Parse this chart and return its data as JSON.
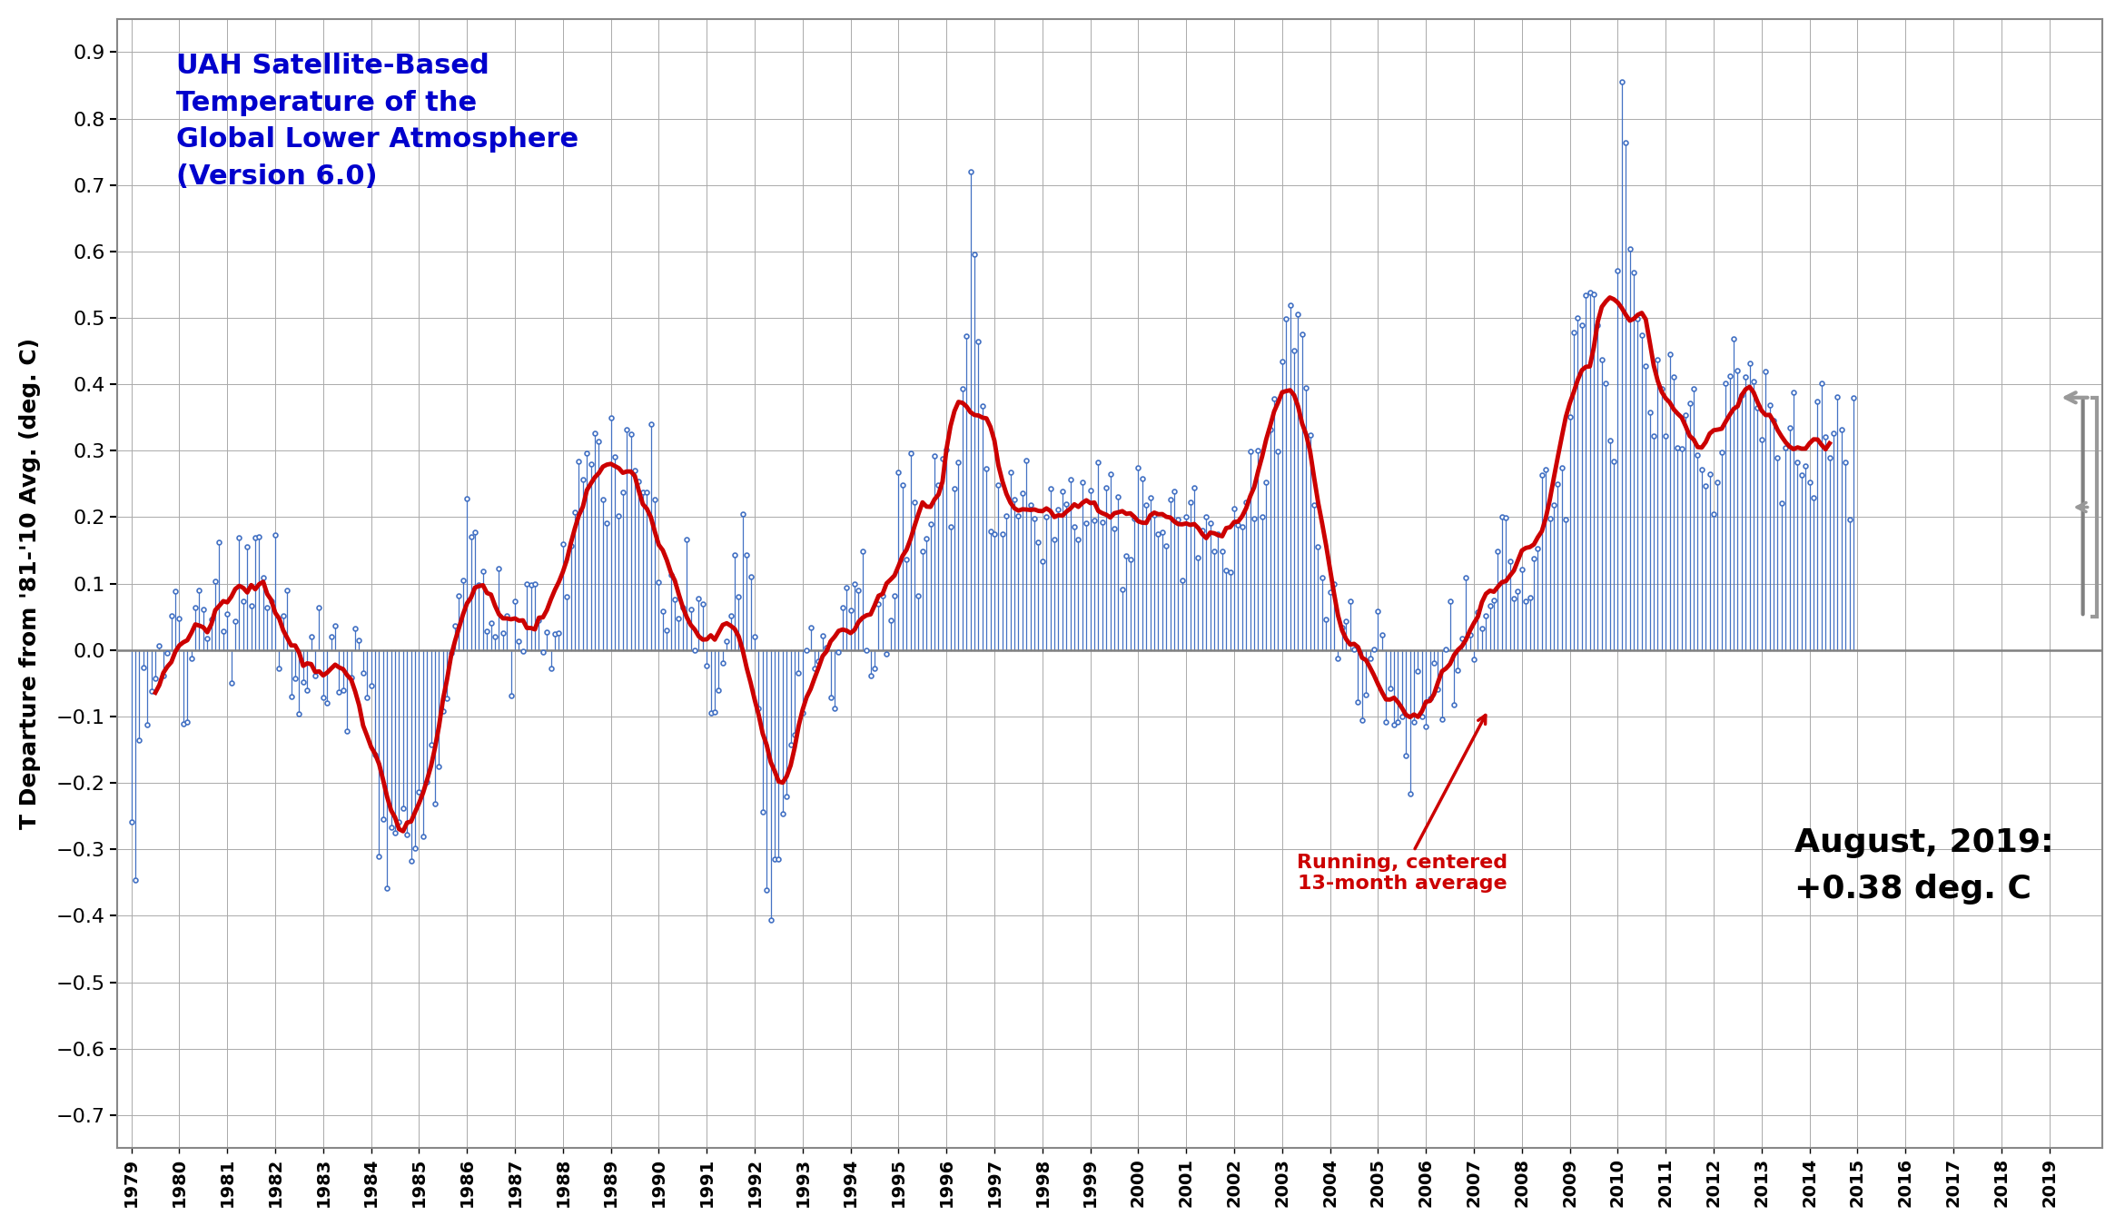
{
  "title_line1": "UAH Satellite-Based",
  "title_line2": "Temperature of the",
  "title_line3": "Global Lower Atmosphere",
  "title_line4": "(Version 6.0)",
  "title_color": "#0000CC",
  "ylabel": "T Departure from '81-'10 Avg. (deg. C)",
  "annotation_text": "August, 2019:\n+0.38 deg. C",
  "running_avg_label": "Running, centered\n13-month average",
  "running_avg_label_color": "#CC0000",
  "ylim": [
    -0.75,
    0.95
  ],
  "yticks": [
    -0.7,
    -0.6,
    -0.5,
    -0.4,
    -0.3,
    -0.2,
    -0.1,
    0.0,
    0.1,
    0.2,
    0.3,
    0.4,
    0.5,
    0.6,
    0.7,
    0.8,
    0.9
  ],
  "background_color": "#ffffff",
  "grid_color": "#aaaaaa",
  "line_color": "#4472c4",
  "marker_color": "#4472c4",
  "running_avg_color": "#CC0000",
  "zero_line_color": "#808080",
  "monthly_data": [
    -0.259,
    -0.346,
    -0.135,
    -0.026,
    -0.113,
    -0.062,
    -0.043,
    0.006,
    -0.038,
    -0.005,
    0.052,
    0.088,
    0.047,
    -0.111,
    -0.108,
    -0.013,
    0.064,
    0.09,
    0.061,
    0.018,
    0.046,
    0.104,
    0.163,
    0.029,
    0.054,
    -0.049,
    0.044,
    0.169,
    0.073,
    0.155,
    0.066,
    0.169,
    0.17,
    0.109,
    0.064,
    0.074,
    0.173,
    -0.028,
    0.051,
    0.09,
    -0.07,
    -0.043,
    -0.096,
    -0.048,
    -0.06,
    0.02,
    -0.038,
    0.064,
    -0.071,
    -0.08,
    0.02,
    0.037,
    -0.063,
    -0.06,
    -0.122,
    -0.041,
    0.032,
    0.015,
    -0.034,
    -0.072,
    -0.053,
    -0.157,
    -0.31,
    -0.254,
    -0.359,
    -0.267,
    -0.275,
    -0.259,
    -0.238,
    -0.278,
    -0.317,
    -0.298,
    -0.213,
    -0.28,
    -0.198,
    -0.142,
    -0.232,
    -0.176,
    -0.092,
    -0.073,
    -0.005,
    0.036,
    0.082,
    0.105,
    0.228,
    0.17,
    0.178,
    0.098,
    0.118,
    0.028,
    0.041,
    0.02,
    0.123,
    0.025,
    0.051,
    -0.069,
    0.074,
    0.013,
    -0.002,
    0.099,
    0.098,
    0.1,
    0.045,
    -0.003,
    0.027,
    -0.027,
    0.024,
    0.025,
    0.16,
    0.08,
    0.157,
    0.207,
    0.284,
    0.256,
    0.296,
    0.28,
    0.327,
    0.314,
    0.227,
    0.191,
    0.349,
    0.291,
    0.202,
    0.238,
    0.332,
    0.325,
    0.271,
    0.254,
    0.237,
    0.237,
    0.34,
    0.227,
    0.102,
    0.059,
    0.03,
    0.113,
    0.076,
    0.047,
    0.064,
    0.166,
    0.061,
    -0.001,
    0.077,
    0.069,
    -0.024,
    -0.095,
    -0.093,
    -0.06,
    -0.02,
    0.013,
    0.052,
    0.143,
    0.081,
    0.205,
    0.143,
    0.11,
    0.02,
    -0.088,
    -0.244,
    -0.361,
    -0.406,
    -0.315,
    -0.315,
    -0.246,
    -0.22,
    -0.142,
    -0.128,
    -0.035,
    -0.094,
    -0.001,
    0.034,
    -0.027,
    -0.017,
    0.022,
    0.004,
    -0.072,
    -0.088,
    -0.003,
    0.064,
    0.094,
    0.06,
    0.099,
    0.09,
    0.148,
    0.0,
    -0.038,
    -0.027,
    0.069,
    0.082,
    -0.006,
    0.045,
    0.082,
    0.268,
    0.249,
    0.136,
    0.296,
    0.222,
    0.082,
    0.148,
    0.168,
    0.19,
    0.292,
    0.248,
    0.288,
    0.302,
    0.186,
    0.243,
    0.282,
    0.393,
    0.473,
    0.72,
    0.596,
    0.464,
    0.368,
    0.273,
    0.179,
    0.175,
    0.248,
    0.175,
    0.202,
    0.267,
    0.226,
    0.202,
    0.236,
    0.285,
    0.219,
    0.198,
    0.162,
    0.133,
    0.201,
    0.243,
    0.167,
    0.212,
    0.239,
    0.22,
    0.257,
    0.185,
    0.167,
    0.252,
    0.191,
    0.24,
    0.195,
    0.283,
    0.193,
    0.244,
    0.265,
    0.183,
    0.231,
    0.091,
    0.142,
    0.137,
    0.198,
    0.275,
    0.258,
    0.218,
    0.23,
    0.204,
    0.174,
    0.177,
    0.157,
    0.226,
    0.239,
    0.196,
    0.105,
    0.201,
    0.222,
    0.244,
    0.139,
    0.18,
    0.2,
    0.191,
    0.148,
    0.175,
    0.148,
    0.12,
    0.117,
    0.213,
    0.188,
    0.185,
    0.222,
    0.299,
    0.198,
    0.301,
    0.201,
    0.253,
    0.332,
    0.378,
    0.299,
    0.434,
    0.499,
    0.519,
    0.451,
    0.506,
    0.476,
    0.395,
    0.324,
    0.218,
    0.156,
    0.109,
    0.046,
    0.087,
    0.099,
    -0.012,
    0.034,
    0.044,
    0.073,
    0.001,
    -0.078,
    -0.106,
    -0.068,
    -0.013,
    0.001,
    0.059,
    0.023,
    -0.109,
    -0.058,
    -0.112,
    -0.109,
    -0.1,
    -0.159,
    -0.217,
    -0.108,
    -0.032,
    -0.1,
    -0.115,
    -0.073,
    -0.02,
    -0.059,
    -0.104,
    0.001,
    0.073,
    -0.083,
    -0.03,
    0.017,
    0.109,
    0.023,
    -0.014,
    0.057,
    0.033,
    0.052,
    0.067,
    0.075,
    0.148,
    0.201,
    0.199,
    0.133,
    0.078,
    0.088,
    0.122,
    0.074,
    0.079,
    0.138,
    0.153,
    0.263,
    0.272,
    0.198,
    0.218,
    0.25,
    0.275,
    0.197,
    0.351,
    0.478,
    0.5,
    0.489,
    0.534,
    0.538,
    0.535,
    0.489,
    0.437,
    0.402,
    0.316,
    0.284,
    0.571,
    0.856,
    0.764,
    0.604,
    0.569,
    0.499,
    0.474,
    0.427,
    0.358,
    0.322,
    0.437,
    0.394,
    0.322,
    0.445,
    0.411,
    0.305,
    0.303,
    0.354,
    0.372,
    0.394,
    0.293,
    0.272,
    0.247,
    0.265,
    0.205,
    0.252,
    0.298,
    0.401,
    0.412,
    0.469,
    0.421,
    0.384,
    0.411,
    0.432,
    0.404,
    0.365,
    0.317,
    0.42,
    0.369,
    0.345,
    0.29,
    0.221,
    0.305,
    0.335,
    0.388,
    0.282,
    0.264,
    0.277,
    0.253,
    0.229,
    0.374,
    0.402,
    0.321,
    0.29,
    0.327,
    0.381,
    0.332,
    0.282,
    0.196,
    0.38
  ],
  "start_year": 1979,
  "start_month": 1
}
